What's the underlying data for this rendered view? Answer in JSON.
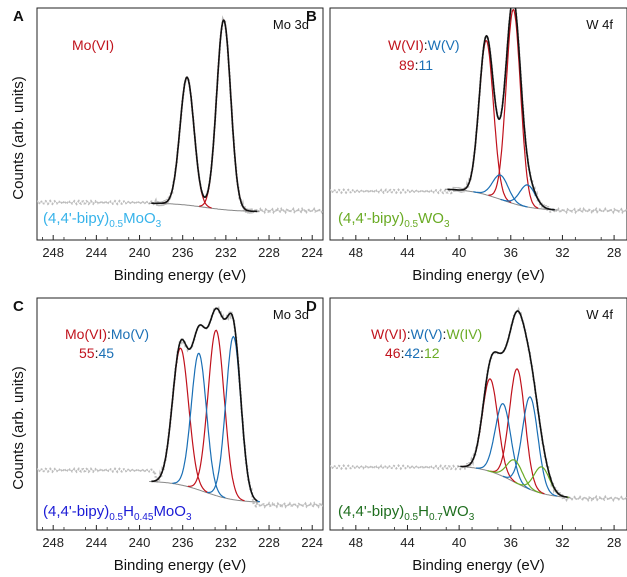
{
  "figure": {
    "ylabel": "Counts (arb. units)",
    "xlabel": "Binding energy (eV)"
  },
  "colors": {
    "red": "#c0121c",
    "blue": "#1a6fb5",
    "green": "#6aab25",
    "sky": "#37b3ea",
    "navy": "#1b1bd6",
    "darkgreen": "#1f6e1f",
    "fit": "#111111",
    "background": "#888888",
    "raw": "#bdbdbd"
  },
  "chart_data": [
    {
      "panel": "A",
      "type": "line",
      "corner_label": "Mo 3d",
      "xlabel": "Binding energy (eV)",
      "ylabel": "Counts (arb. units)",
      "xlim": [
        249.5,
        223
      ],
      "x_reversed": true,
      "xticks": [
        248,
        244,
        240,
        236,
        232,
        228,
        224
      ],
      "tick_labels": [
        "248",
        "244",
        "240",
        "236",
        "232",
        "228",
        "224"
      ],
      "ratio_labels": [
        {
          "text": "Mo(VI)",
          "color": "#c0121c"
        }
      ],
      "ratio_values": [],
      "sample": {
        "pre": "(4,4'-bipy)",
        "sub1": "0.5",
        "mid": "MoO",
        "sub2": "3",
        "post": "",
        "sub3": "",
        "tail": "",
        "color": "#37b3ea"
      },
      "baseline": {
        "x1": 238.5,
        "x2": 229.5,
        "y1": 0.055,
        "y2": 0.015
      },
      "raw": {
        "x_start": 249.5,
        "x_end": 223,
        "y_left": 0.06,
        "y_right": 0.02
      },
      "components": [
        {
          "center": 235.6,
          "height": 0.58,
          "width": 0.65,
          "color": "#c0121c"
        },
        {
          "center": 232.2,
          "height": 0.86,
          "width": 0.65,
          "color": "#c0121c"
        }
      ]
    },
    {
      "panel": "B",
      "type": "line",
      "corner_label": "W 4f",
      "xlabel": "Binding energy (eV)",
      "ylabel": "",
      "xlim": [
        50,
        27
      ],
      "x_reversed": true,
      "xticks": [
        48,
        44,
        40,
        36,
        32,
        28
      ],
      "tick_labels": [
        "48",
        "44",
        "40",
        "36",
        "32",
        "28"
      ],
      "ratio_labels": [
        {
          "text": "W(VI)",
          "color": "#c0121c"
        },
        {
          "text": ":",
          "color": "#111111"
        },
        {
          "text": "W(V)",
          "color": "#1a6fb5"
        }
      ],
      "ratio_values": [
        {
          "text": "89",
          "color": "#c0121c"
        },
        {
          "text": ":",
          "color": "#111111"
        },
        {
          "text": "11",
          "color": "#1a6fb5"
        }
      ],
      "sample": {
        "pre": "(4,4'-bipy)",
        "sub1": "0.5",
        "mid": "WO",
        "sub2": "3",
        "post": "",
        "sub3": "",
        "tail": "",
        "color": "#6aab25"
      },
      "baseline": {
        "x1": 40.5,
        "x2": 33,
        "y1": 0.12,
        "y2": 0.02
      },
      "raw": {
        "x_start": 50,
        "x_end": 27,
        "y_left": 0.09,
        "y_right": 0.02
      },
      "components": [
        {
          "center": 37.9,
          "height": 0.7,
          "width": 0.55,
          "color": "#c0121c"
        },
        {
          "center": 35.8,
          "height": 0.88,
          "width": 0.55,
          "color": "#c0121c"
        },
        {
          "center": 36.8,
          "height": 0.11,
          "width": 0.6,
          "color": "#1a6fb5"
        },
        {
          "center": 34.7,
          "height": 0.1,
          "width": 0.6,
          "color": "#1a6fb5"
        }
      ]
    },
    {
      "panel": "C",
      "type": "line",
      "corner_label": "Mo 3d",
      "xlabel": "Binding energy (eV)",
      "ylabel": "Counts (arb. units)",
      "xlim": [
        249.5,
        223
      ],
      "x_reversed": true,
      "xticks": [
        248,
        244,
        240,
        236,
        232,
        228,
        224
      ],
      "tick_labels": [
        "248",
        "244",
        "240",
        "236",
        "232",
        "228",
        "224"
      ],
      "ratio_labels": [
        {
          "text": "Mo(VI)",
          "color": "#c0121c"
        },
        {
          "text": ":",
          "color": "#111111"
        },
        {
          "text": "Mo(V)",
          "color": "#1a6fb5"
        }
      ],
      "ratio_values": [
        {
          "text": "55",
          "color": "#c0121c"
        },
        {
          "text": ":",
          "color": "#111111"
        },
        {
          "text": "45",
          "color": "#1a6fb5"
        }
      ],
      "sample": {
        "pre": "(4,4'-bipy)",
        "sub1": "0.5",
        "mid": "H",
        "sub2": "0.45",
        "post": "MoO",
        "sub3": "3",
        "tail": "",
        "color": "#1b1bd6"
      },
      "baseline": {
        "x1": 238.5,
        "x2": 229.5,
        "y1": 0.11,
        "y2": 0.01
      },
      "raw": {
        "x_start": 249.5,
        "x_end": 223,
        "y_left": 0.23,
        "y_right": 0.0
      },
      "components": [
        {
          "center": 236.2,
          "height": 0.62,
          "width": 0.75,
          "color": "#c0121c"
        },
        {
          "center": 232.9,
          "height": 0.75,
          "width": 0.75,
          "color": "#c0121c"
        },
        {
          "center": 234.5,
          "height": 0.62,
          "width": 0.7,
          "color": "#1a6fb5"
        },
        {
          "center": 231.3,
          "height": 0.74,
          "width": 0.7,
          "color": "#1a6fb5"
        }
      ]
    },
    {
      "panel": "D",
      "type": "line",
      "corner_label": "W 4f",
      "xlabel": "Binding energy (eV)",
      "ylabel": "",
      "xlim": [
        50,
        27
      ],
      "x_reversed": true,
      "xticks": [
        48,
        44,
        40,
        36,
        32,
        28
      ],
      "tick_labels": [
        "48",
        "44",
        "40",
        "36",
        "32",
        "28"
      ],
      "ratio_labels": [
        {
          "text": "W(VI)",
          "color": "#c0121c"
        },
        {
          "text": ":",
          "color": "#111111"
        },
        {
          "text": "W(V)",
          "color": "#1a6fb5"
        },
        {
          "text": ":",
          "color": "#111111"
        },
        {
          "text": "W(IV)",
          "color": "#6aab25"
        }
      ],
      "ratio_values": [
        {
          "text": "46",
          "color": "#c0121c"
        },
        {
          "text": ":",
          "color": "#111111"
        },
        {
          "text": "42",
          "color": "#1a6fb5"
        },
        {
          "text": ":",
          "color": "#111111"
        },
        {
          "text": "12",
          "color": "#6aab25"
        }
      ],
      "sample": {
        "pre": "(4,4'-bipy)",
        "sub1": "0.5",
        "mid": "H",
        "sub2": "0.7",
        "post": "WO",
        "sub3": "3",
        "tail": "",
        "color": "#1f6e1f"
      },
      "baseline": {
        "x1": 39.5,
        "x2": 32,
        "y1": 0.18,
        "y2": 0.03
      },
      "raw": {
        "x_start": 50,
        "x_end": 27,
        "y_left": 0.16,
        "y_right": 0.03
      },
      "components": [
        {
          "center": 37.6,
          "height": 0.42,
          "width": 0.6,
          "color": "#c0121c"
        },
        {
          "center": 35.5,
          "height": 0.52,
          "width": 0.6,
          "color": "#c0121c"
        },
        {
          "center": 36.6,
          "height": 0.33,
          "width": 0.6,
          "color": "#1a6fb5"
        },
        {
          "center": 34.5,
          "height": 0.42,
          "width": 0.6,
          "color": "#1a6fb5"
        },
        {
          "center": 35.7,
          "height": 0.1,
          "width": 0.6,
          "color": "#6aab25"
        },
        {
          "center": 33.6,
          "height": 0.12,
          "width": 0.6,
          "color": "#6aab25"
        }
      ]
    }
  ]
}
